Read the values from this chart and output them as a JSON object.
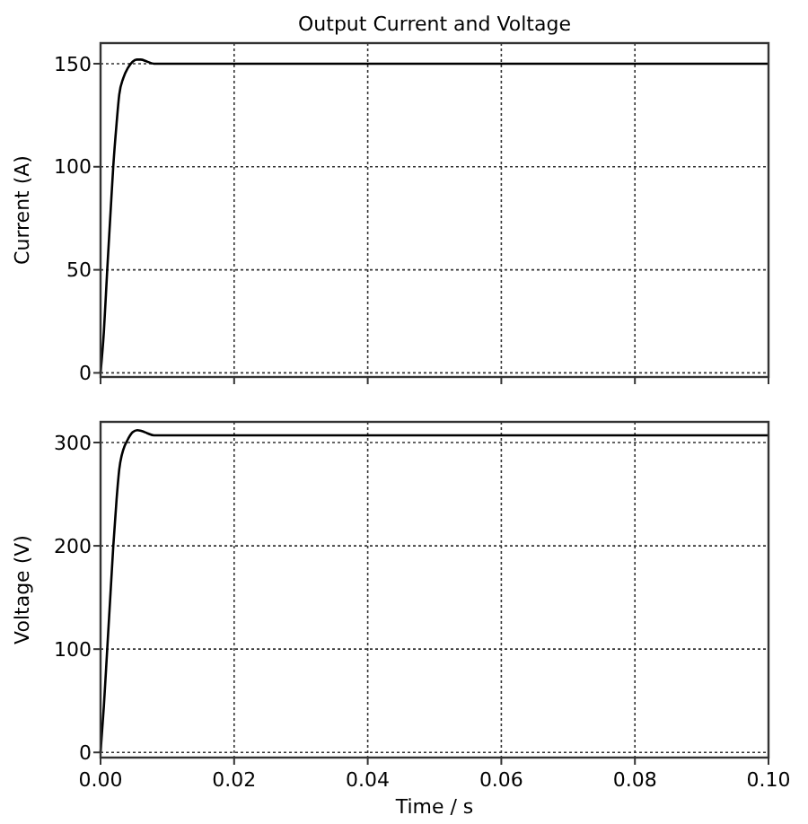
{
  "chart_data": [
    {
      "type": "line",
      "title": "Output Current and Voltage",
      "ylabel": "Current (A)",
      "xlim": [
        0,
        0.1
      ],
      "xticks": [
        0,
        0.02,
        0.04,
        0.06,
        0.08,
        0.1
      ],
      "ylim": [
        -2,
        160
      ],
      "yticks": [
        0,
        50,
        100,
        150
      ],
      "grid": true,
      "tick_labels": "y",
      "line_style": "solid",
      "series": [
        {
          "color": "#000000",
          "x": [
            0,
            0.0005,
            0.001,
            0.0015,
            0.0019,
            0.0024,
            0.0028,
            0.0034,
            0.0041,
            0.0048,
            0.0054,
            0.006,
            0.007,
            0.008,
            0.01,
            0.1
          ],
          "values": [
            0,
            20,
            50,
            78,
            100,
            121,
            135,
            143,
            148,
            151,
            152,
            152,
            151,
            150,
            150,
            150
          ]
        }
      ]
    },
    {
      "type": "line",
      "xlabel": "Time / s",
      "ylabel": "Voltage (V)",
      "xlim": [
        0,
        0.1
      ],
      "xticks": [
        {
          "value": 0,
          "label": "0.00"
        },
        {
          "value": 0.02,
          "label": "0.02"
        },
        {
          "value": 0.04,
          "label": "0.04"
        },
        {
          "value": 0.06,
          "label": "0.06"
        },
        {
          "value": 0.08,
          "label": "0.08"
        },
        {
          "value": 0.1,
          "label": "0.10"
        }
      ],
      "ylim": [
        -5,
        320
      ],
      "yticks": [
        0,
        100,
        200,
        300
      ],
      "grid": true,
      "line_style": "solid",
      "series": [
        {
          "color": "#000000",
          "x": [
            0,
            0.0005,
            0.001,
            0.0015,
            0.0019,
            0.0024,
            0.0028,
            0.0034,
            0.004,
            0.0048,
            0.0055,
            0.0062,
            0.007,
            0.008,
            0.009,
            0.1
          ],
          "values": [
            0,
            45,
            100,
            155,
            199,
            245,
            274,
            293,
            302,
            310,
            312,
            311,
            309,
            307,
            307,
            307
          ]
        }
      ]
    }
  ]
}
